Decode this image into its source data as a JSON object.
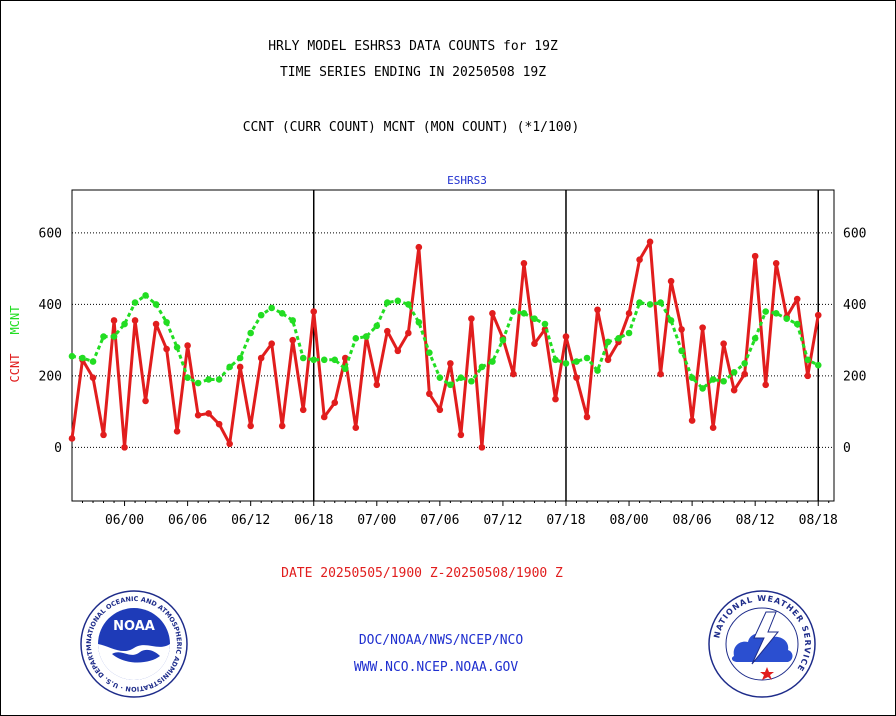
{
  "header": {
    "title_line1": "HRLY MODEL ESHRS3 DATA COUNTS for 19Z",
    "title_line2": "TIME SERIES ENDING IN 20250508 19Z",
    "subtitle": "CCNT (CURR COUNT) MCNT (MON COUNT) (*1/100)"
  },
  "footer": {
    "date_range": "DATE 20250505/1900 Z-20250508/1900 Z",
    "org_line": "DOC/NOAA/NWS/NCEP/NCO",
    "url_line": "WWW.NCO.NCEP.NOAA.GOV",
    "noaa_logo_text": "NOAA",
    "noaa_ring_text": "NATIONAL OCEANIC AND ATMOSPHERIC ADMINISTRATION · U.S. DEPARTMENT OF COMMERCE",
    "nws_ring_text": "NATIONAL WEATHER SERVICE"
  },
  "colors": {
    "ccnt": "#e11d1d",
    "mcnt": "#22dd22",
    "plot_label": "#1f2fcf",
    "grid": "#000000"
  },
  "chart_data": {
    "type": "line",
    "title": "ESHRS3",
    "ylabel_left": "CCNT",
    "ylabel_right": "MCNT",
    "ylim": [
      -150,
      720
    ],
    "yticks": [
      0,
      200,
      400,
      600
    ],
    "xlim": [
      0,
      72.5
    ],
    "x_tick_positions": [
      5,
      11,
      17,
      23,
      29,
      35,
      41,
      47,
      53,
      59,
      65,
      71
    ],
    "x_tick_labels": [
      "06/00",
      "06/06",
      "06/12",
      "06/18",
      "07/00",
      "07/06",
      "07/12",
      "07/18",
      "08/00",
      "08/06",
      "08/12",
      "08/18"
    ],
    "day_boundaries": [
      23,
      47,
      71
    ],
    "grid": true,
    "series": [
      {
        "name": "CCNT",
        "color": "#e11d1d",
        "values": [
          25,
          245,
          195,
          35,
          355,
          0,
          355,
          130,
          345,
          275,
          45,
          285,
          90,
          95,
          65,
          10,
          225,
          60,
          250,
          290,
          60,
          300,
          105,
          380,
          85,
          125,
          250,
          55,
          310,
          175,
          325,
          270,
          320,
          560,
          150,
          105,
          235,
          35,
          360,
          0,
          375,
          305,
          205,
          515,
          290,
          330,
          135,
          310,
          195,
          85,
          385,
          245,
          295,
          375,
          525,
          575,
          205,
          465,
          330,
          75,
          335,
          55,
          290,
          160,
          205,
          535,
          175,
          515,
          365,
          415,
          200,
          370
        ]
      },
      {
        "name": "MCNT",
        "color": "#22dd22",
        "values": [
          255,
          250,
          240,
          310,
          310,
          345,
          405,
          425,
          400,
          350,
          280,
          195,
          180,
          190,
          190,
          225,
          250,
          320,
          370,
          390,
          375,
          355,
          250,
          245,
          245,
          245,
          220,
          305,
          310,
          340,
          405,
          410,
          400,
          350,
          265,
          195,
          175,
          195,
          185,
          225,
          240,
          300,
          380,
          375,
          360,
          345,
          245,
          235,
          240,
          250,
          215,
          295,
          305,
          320,
          405,
          400,
          405,
          355,
          270,
          195,
          165,
          190,
          185,
          210,
          235,
          305,
          380,
          375,
          360,
          345,
          245,
          230
        ]
      }
    ]
  }
}
